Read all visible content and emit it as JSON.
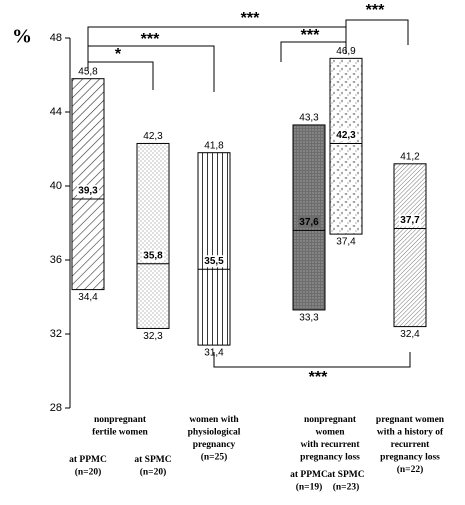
{
  "chart_data": {
    "type": "range",
    "y_label": "%",
    "ylim": [
      28,
      48
    ],
    "yticks": [
      28,
      32,
      36,
      40,
      44,
      48
    ],
    "categories": [
      [
        "at PPMC",
        "(n=20)"
      ],
      [
        "at SPMC",
        "(n=20)"
      ],
      [
        "women with",
        "physiological",
        "pregnancy",
        "(n=25)"
      ],
      [
        "at PPMC",
        "(n=19)"
      ],
      [
        "at SPMC",
        "(n=23)"
      ],
      [
        "pregnant women",
        "with a history of",
        "recurrent",
        "pregnancy loss",
        "(n=22)"
      ]
    ],
    "groups": [
      [
        "nonpregnant",
        "fertile women"
      ],
      [
        "nonpregnant",
        "women",
        "with recurrent",
        "pregnancy loss"
      ]
    ],
    "ranges": {
      "high": {
        "values": [
          45.8,
          42.3,
          41.8,
          43.3,
          46.9,
          41.2
        ],
        "value_labels": [
          "45,8",
          "42,3",
          "41,8",
          "43,3",
          "46,9",
          "41,2"
        ]
      },
      "median": {
        "values": [
          39.3,
          35.8,
          35.5,
          37.6,
          42.3,
          37.7
        ],
        "value_labels": [
          "39,3",
          "35,8",
          "35,5",
          "37,6",
          "42,3",
          "37,7"
        ]
      },
      "low": {
        "values": [
          34.4,
          32.3,
          31.4,
          33.3,
          37.4,
          32.4
        ],
        "value_labels": [
          "34,4",
          "32,3",
          "31,4",
          "33,3",
          "37,4",
          "32,4"
        ]
      }
    },
    "significance": [
      "*",
      "***",
      "***",
      "***",
      "***",
      "***"
    ]
  }
}
